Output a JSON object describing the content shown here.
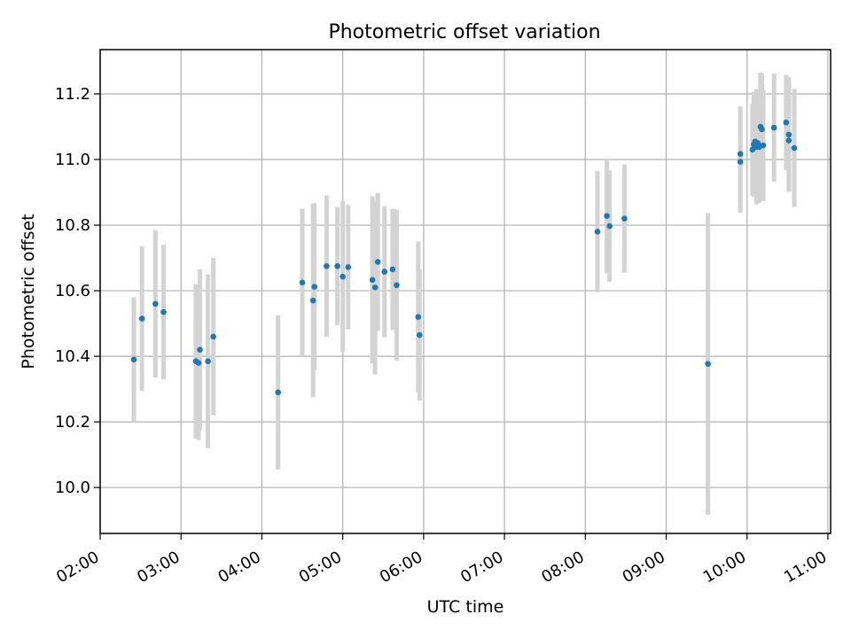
{
  "chart_data": {
    "type": "scatter",
    "title": "Photometric offset variation",
    "xlabel": "UTC time",
    "ylabel": "Photometric offset",
    "x_axis_type": "time",
    "xlim": [
      "02:00",
      "11:02"
    ],
    "ylim": [
      9.86,
      11.335
    ],
    "xticks": [
      "02:00",
      "03:00",
      "04:00",
      "05:00",
      "06:00",
      "07:00",
      "08:00",
      "09:00",
      "10:00",
      "11:00"
    ],
    "yticks": [
      10.0,
      10.2,
      10.4,
      10.6,
      10.8,
      11.0,
      11.2
    ],
    "grid": true,
    "legend": "none",
    "marker_color": "#1f77b4",
    "errorbar_color": "#d3d3d3",
    "series": [
      {
        "x": [
          "02:25",
          "02:31",
          "02:41",
          "02:47",
          "03:11",
          "03:13",
          "03:14",
          "03:20",
          "03:24",
          "04:12",
          "04:30",
          "04:38",
          "04:39",
          "04:48",
          "04:56",
          "05:00",
          "05:04",
          "05:22",
          "05:24",
          "05:26",
          "05:31",
          "05:37",
          "05:40",
          "05:56",
          "05:57",
          "08:09",
          "08:16",
          "08:18",
          "08:29",
          "09:31",
          "09:55",
          "09:55",
          "10:04",
          "10:05",
          "10:06",
          "10:07",
          "10:08",
          "10:09",
          "10:10",
          "10:11",
          "10:12",
          "10:20",
          "10:29",
          "10:31",
          "10:31",
          "10:35"
        ],
        "y": [
          10.39,
          10.515,
          10.56,
          10.535,
          10.385,
          10.38,
          10.42,
          10.385,
          10.46,
          10.29,
          10.625,
          10.57,
          10.612,
          10.675,
          10.675,
          10.643,
          10.672,
          10.633,
          10.61,
          10.688,
          10.658,
          10.665,
          10.617,
          10.52,
          10.465,
          10.78,
          10.828,
          10.797,
          10.82,
          10.377,
          11.017,
          10.993,
          11.03,
          11.046,
          11.055,
          11.038,
          11.05,
          11.038,
          11.1,
          11.092,
          11.043,
          11.097,
          11.113,
          11.076,
          11.058,
          11.035
        ],
        "yerr": [
          0.19,
          0.22,
          0.225,
          0.205,
          0.235,
          0.235,
          0.245,
          0.265,
          0.24,
          0.235,
          0.225,
          0.295,
          0.255,
          0.215,
          0.18,
          0.23,
          0.19,
          0.255,
          0.265,
          0.21,
          0.2,
          0.185,
          0.23,
          0.23,
          0.2,
          0.185,
          0.175,
          0.17,
          0.165,
          0.46,
          0.145,
          0.155,
          0.14,
          0.16,
          0.15,
          0.175,
          0.165,
          0.17,
          0.165,
          0.17,
          0.17,
          0.165,
          0.145,
          0.175,
          0.155,
          0.18
        ]
      }
    ]
  }
}
